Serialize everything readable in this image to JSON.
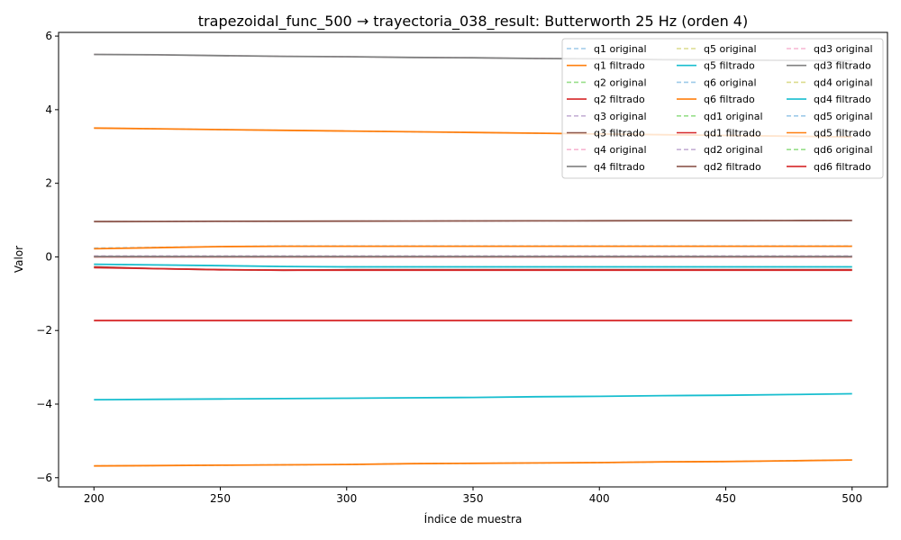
{
  "chart_data": {
    "type": "line",
    "title": "trapezoidal_func_500 → trayectoria_038_result: Butterworth 25 Hz (orden 4)",
    "xlabel": "Índice de muestra",
    "ylabel": "Valor",
    "xlim": [
      186,
      514
    ],
    "ylim": [
      -6.25,
      6.1
    ],
    "xticks": [
      200,
      250,
      300,
      350,
      400,
      450,
      500
    ],
    "yticks": [
      -6,
      -4,
      -2,
      0,
      2,
      4,
      6
    ],
    "xtick_labels": [
      "200",
      "250",
      "300",
      "350",
      "400",
      "450",
      "500"
    ],
    "ytick_labels": [
      "−6",
      "−4",
      "−2",
      "0",
      "2",
      "4",
      "6"
    ],
    "grid": false,
    "legend_position": "top-right",
    "legend_columns": 3,
    "x": [
      200,
      225,
      250,
      275,
      300,
      325,
      350,
      375,
      400,
      425,
      450,
      475,
      500
    ],
    "series": [
      {
        "name": "q1 original",
        "style": "dashed",
        "color": "#9ecae9",
        "values": [
          3.5,
          3.48,
          3.46,
          3.44,
          3.42,
          3.4,
          3.38,
          3.36,
          3.34,
          3.32,
          3.3,
          3.28,
          3.26
        ]
      },
      {
        "name": "q1 filtrado",
        "style": "solid",
        "color": "#ff7f0e",
        "values": [
          3.5,
          3.48,
          3.46,
          3.44,
          3.42,
          3.4,
          3.38,
          3.36,
          3.34,
          3.32,
          3.3,
          3.28,
          3.26
        ]
      },
      {
        "name": "q2 original",
        "style": "dashed",
        "color": "#98df8a",
        "values": [
          -1.73,
          -1.73,
          -1.73,
          -1.73,
          -1.73,
          -1.73,
          -1.73,
          -1.73,
          -1.73,
          -1.73,
          -1.73,
          -1.73,
          -1.73
        ]
      },
      {
        "name": "q2 filtrado",
        "style": "solid",
        "color": "#d62728",
        "values": [
          -1.73,
          -1.73,
          -1.73,
          -1.73,
          -1.73,
          -1.73,
          -1.73,
          -1.73,
          -1.73,
          -1.73,
          -1.73,
          -1.73,
          -1.73
        ]
      },
      {
        "name": "q3 original",
        "style": "dashed",
        "color": "#c5b0d5",
        "values": [
          0.96,
          0.963,
          0.966,
          0.97,
          0.972,
          0.975,
          0.977,
          0.979,
          0.981,
          0.983,
          0.985,
          0.987,
          0.99
        ]
      },
      {
        "name": "q3 filtrado",
        "style": "solid",
        "color": "#8c564b",
        "values": [
          0.96,
          0.963,
          0.966,
          0.97,
          0.972,
          0.975,
          0.977,
          0.979,
          0.981,
          0.983,
          0.985,
          0.987,
          0.99
        ]
      },
      {
        "name": "q4 original",
        "style": "dashed",
        "color": "#f7b6d2",
        "values": [
          5.5,
          5.49,
          5.47,
          5.45,
          5.44,
          5.42,
          5.41,
          5.39,
          5.38,
          5.36,
          5.35,
          5.34,
          5.33
        ]
      },
      {
        "name": "q4 filtrado",
        "style": "solid",
        "color": "#7f7f7f",
        "values": [
          5.5,
          5.49,
          5.47,
          5.45,
          5.44,
          5.42,
          5.41,
          5.39,
          5.38,
          5.36,
          5.35,
          5.34,
          5.33
        ]
      },
      {
        "name": "q5 original",
        "style": "dashed",
        "color": "#dbdb8d",
        "values": [
          -5.68,
          -5.67,
          -5.66,
          -5.65,
          -5.64,
          -5.62,
          -5.61,
          -5.6,
          -5.59,
          -5.57,
          -5.56,
          -5.54,
          -5.52
        ]
      },
      {
        "name": "q5 filtrado",
        "style": "solid",
        "color": "#17becf",
        "values": [
          -3.88,
          -3.87,
          -3.86,
          -3.85,
          -3.84,
          -3.83,
          -3.82,
          -3.8,
          -3.79,
          -3.77,
          -3.76,
          -3.74,
          -3.72
        ]
      },
      {
        "name": "q6 original",
        "style": "dashed",
        "color": "#9ecae9",
        "values": [
          -5.68,
          -5.67,
          -5.66,
          -5.65,
          -5.64,
          -5.62,
          -5.61,
          -5.6,
          -5.59,
          -5.57,
          -5.56,
          -5.54,
          -5.52
        ]
      },
      {
        "name": "q6 filtrado",
        "style": "solid",
        "color": "#ff7f0e",
        "values": [
          -5.68,
          -5.67,
          -5.66,
          -5.65,
          -5.64,
          -5.62,
          -5.61,
          -5.6,
          -5.59,
          -5.57,
          -5.56,
          -5.54,
          -5.52
        ]
      },
      {
        "name": "qd1 original",
        "style": "dashed",
        "color": "#98df8a",
        "values": [
          0.0,
          0.0,
          0.0,
          0.0,
          0.0,
          0.0,
          0.0,
          0.0,
          0.0,
          0.0,
          0.0,
          0.0,
          0.0
        ]
      },
      {
        "name": "qd1 filtrado",
        "style": "solid",
        "color": "#d62728",
        "values": [
          0.0,
          0.0,
          0.0,
          0.0,
          0.0,
          0.0,
          0.0,
          0.0,
          0.0,
          0.0,
          0.0,
          0.0,
          0.0
        ]
      },
      {
        "name": "qd2 original",
        "style": "dashed",
        "color": "#c5b0d5",
        "values": [
          0.03,
          0.03,
          0.03,
          0.03,
          0.03,
          0.03,
          0.03,
          0.03,
          0.03,
          0.03,
          0.03,
          0.03,
          0.03
        ]
      },
      {
        "name": "qd2 filtrado",
        "style": "solid",
        "color": "#8c564b",
        "values": [
          -0.27,
          -0.32,
          -0.35,
          -0.36,
          -0.35,
          -0.35,
          -0.35,
          -0.35,
          -0.35,
          -0.35,
          -0.35,
          -0.35,
          -0.35
        ]
      },
      {
        "name": "qd3 original",
        "style": "dashed",
        "color": "#f7b6d2",
        "values": [
          0.02,
          0.02,
          0.02,
          0.02,
          0.02,
          0.02,
          0.02,
          0.02,
          0.02,
          0.02,
          0.02,
          0.02,
          0.02
        ]
      },
      {
        "name": "qd3 filtrado",
        "style": "solid",
        "color": "#7f7f7f",
        "values": [
          0.01,
          0.01,
          0.01,
          0.01,
          0.01,
          0.01,
          0.01,
          0.01,
          0.01,
          0.01,
          0.01,
          0.01,
          0.01
        ]
      },
      {
        "name": "qd4 original",
        "style": "dashed",
        "color": "#dbdb8d",
        "values": [
          -0.2,
          -0.22,
          -0.24,
          -0.26,
          -0.27,
          -0.27,
          -0.27,
          -0.27,
          -0.27,
          -0.27,
          -0.27,
          -0.27,
          -0.27
        ]
      },
      {
        "name": "qd4 filtrado",
        "style": "solid",
        "color": "#17becf",
        "values": [
          -0.2,
          -0.22,
          -0.24,
          -0.26,
          -0.27,
          -0.27,
          -0.27,
          -0.27,
          -0.27,
          -0.27,
          -0.27,
          -0.27,
          -0.27
        ]
      },
      {
        "name": "qd5 original",
        "style": "dashed",
        "color": "#9ecae9",
        "values": [
          0.24,
          0.26,
          0.28,
          0.3,
          0.3,
          0.3,
          0.3,
          0.3,
          0.3,
          0.3,
          0.3,
          0.3,
          0.3
        ]
      },
      {
        "name": "qd5 filtrado",
        "style": "solid",
        "color": "#ff7f0e",
        "values": [
          0.22,
          0.25,
          0.28,
          0.29,
          0.29,
          0.29,
          0.29,
          0.29,
          0.29,
          0.29,
          0.29,
          0.29,
          0.29
        ]
      },
      {
        "name": "qd6 original",
        "style": "dashed",
        "color": "#98df8a",
        "values": [
          -0.29,
          -0.32,
          -0.35,
          -0.36,
          -0.36,
          -0.36,
          -0.36,
          -0.36,
          -0.36,
          -0.36,
          -0.36,
          -0.36,
          -0.36
        ]
      },
      {
        "name": "qd6 filtrado",
        "style": "solid",
        "color": "#d62728",
        "values": [
          -0.29,
          -0.32,
          -0.35,
          -0.36,
          -0.36,
          -0.36,
          -0.36,
          -0.36,
          -0.36,
          -0.36,
          -0.36,
          -0.36,
          -0.36
        ]
      }
    ]
  }
}
